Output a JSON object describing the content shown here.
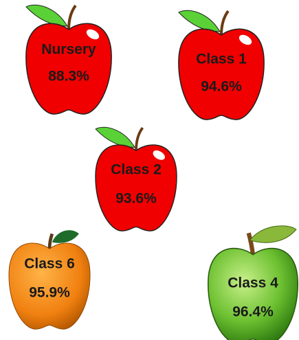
{
  "items": [
    {
      "label": "Nursery",
      "value": "88.3%"
    },
    {
      "label": "Class 1",
      "value": "94.6%"
    },
    {
      "label": "Class 2",
      "value": "93.6%"
    },
    {
      "label": "Class 6",
      "value": "95.9%"
    },
    {
      "label": "Class 4",
      "value": "96.4%"
    }
  ]
}
